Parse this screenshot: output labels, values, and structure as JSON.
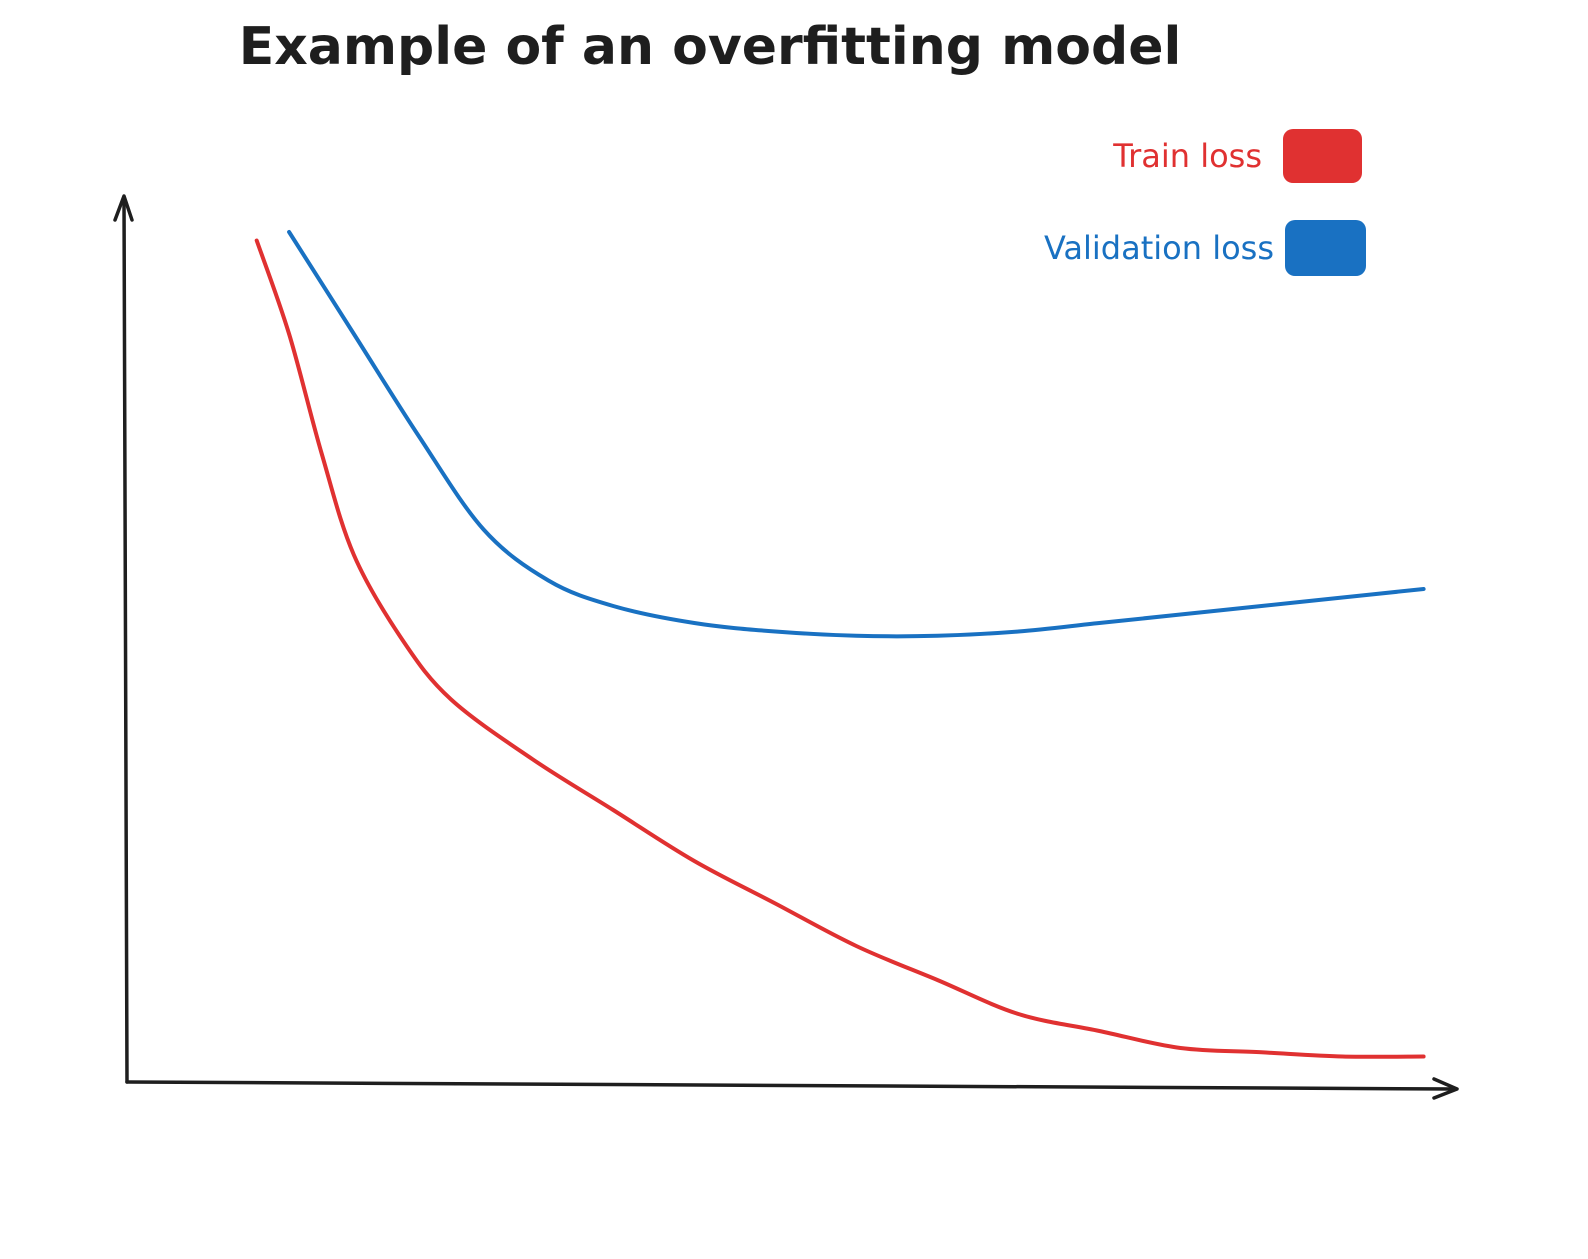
{
  "chart_data": {
    "type": "line",
    "title": "Example of an overfitting model",
    "xlabel": "",
    "ylabel": "",
    "grid": false,
    "legend_position": "top-right",
    "x_ticks_shown": false,
    "y_ticks_shown": false,
    "series": [
      {
        "name": "Train loss",
        "color": "#e03131",
        "points": [
          [
            0.08,
            0.99
          ],
          [
            0.1,
            0.88
          ],
          [
            0.12,
            0.74
          ],
          [
            0.14,
            0.62
          ],
          [
            0.17,
            0.52
          ],
          [
            0.2,
            0.45
          ],
          [
            0.25,
            0.38
          ],
          [
            0.3,
            0.32
          ],
          [
            0.35,
            0.26
          ],
          [
            0.4,
            0.21
          ],
          [
            0.45,
            0.16
          ],
          [
            0.5,
            0.12
          ],
          [
            0.55,
            0.08
          ],
          [
            0.6,
            0.06
          ],
          [
            0.65,
            0.04
          ],
          [
            0.7,
            0.035
          ],
          [
            0.75,
            0.03
          ],
          [
            0.8,
            0.03
          ]
        ]
      },
      {
        "name": "Validation loss",
        "color": "#1971c2",
        "points": [
          [
            0.1,
            1.0
          ],
          [
            0.14,
            0.88
          ],
          [
            0.18,
            0.76
          ],
          [
            0.22,
            0.65
          ],
          [
            0.26,
            0.59
          ],
          [
            0.3,
            0.56
          ],
          [
            0.35,
            0.54
          ],
          [
            0.4,
            0.53
          ],
          [
            0.45,
            0.525
          ],
          [
            0.5,
            0.525
          ],
          [
            0.55,
            0.53
          ],
          [
            0.6,
            0.54
          ],
          [
            0.65,
            0.55
          ],
          [
            0.7,
            0.56
          ],
          [
            0.75,
            0.57
          ],
          [
            0.8,
            0.58
          ]
        ]
      }
    ],
    "xlim": [
      0,
      0.82
    ],
    "ylim": [
      0,
      1.04
    ]
  }
}
